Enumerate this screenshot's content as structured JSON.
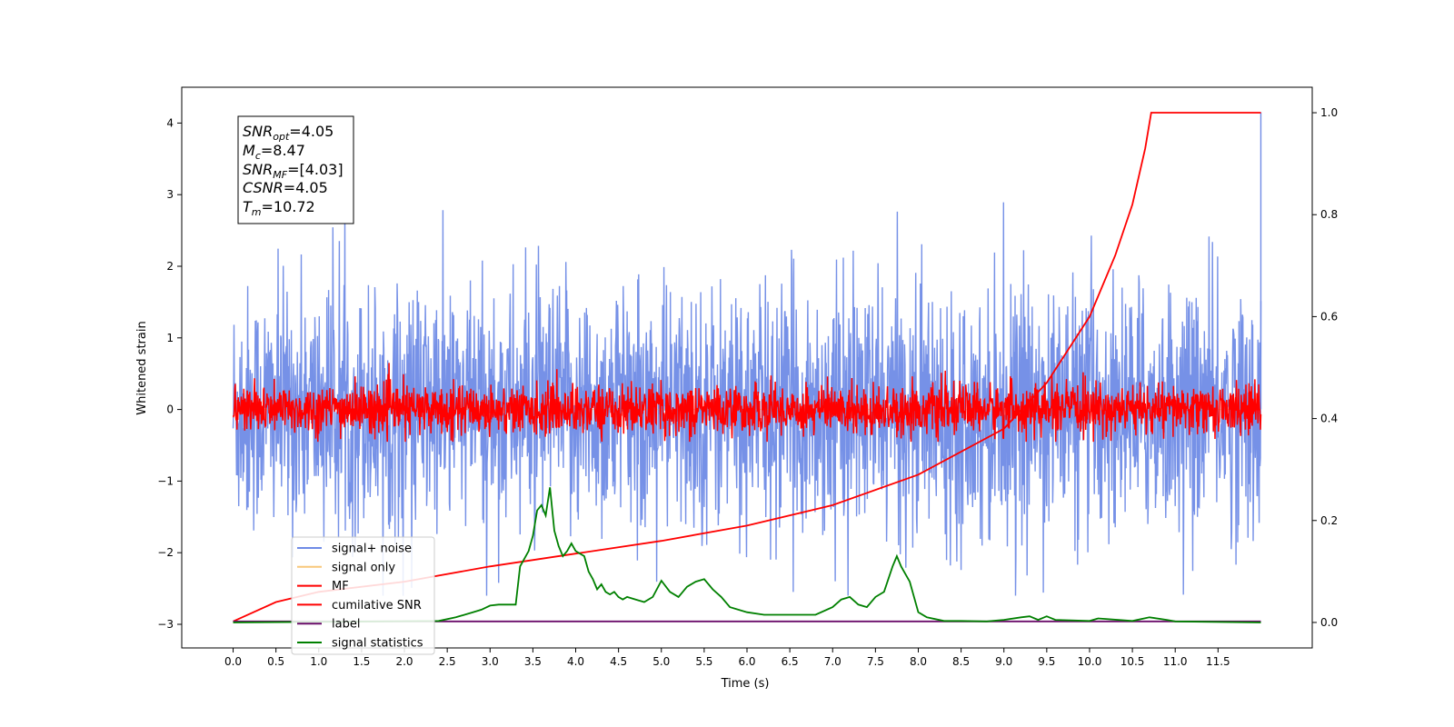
{
  "chart_data": {
    "type": "line",
    "xlabel": "Time (s)",
    "ylabel": "Whitened strain",
    "xlim": [
      -0.6,
      12.6
    ],
    "ylim_left": [
      -3.33,
      4.5
    ],
    "ylim_right": [
      -0.05,
      1.05
    ],
    "x_ticks": [
      "0.0",
      "0.5",
      "1.0",
      "1.5",
      "2.0",
      "2.5",
      "3.0",
      "3.5",
      "4.0",
      "4.5",
      "5.0",
      "5.5",
      "6.0",
      "6.5",
      "7.0",
      "7.5",
      "8.0",
      "8.5",
      "9.0",
      "9.5",
      "10.0",
      "10.5",
      "11.0",
      "11.5"
    ],
    "y_ticks_left": [
      "4",
      "3",
      "2",
      "1",
      "0",
      "−1",
      "−2",
      "−3"
    ],
    "y_ticks_right": [
      "1.0",
      "0.8",
      "0.6",
      "0.4",
      "0.2",
      "0.0"
    ],
    "colors": {
      "signal_noise": "#6f8be6",
      "signal_only": "#f5b041",
      "mf": "#ff0000",
      "cumulative_snr": "#ff0000",
      "label": "#6a0d6a",
      "signal_statistics": "#008000"
    },
    "annotation": {
      "snr_opt": "=4.05",
      "mc": "=8.47",
      "snr_mf": "=[4.03]",
      "csnr": "=4.05",
      "tm": "=10.72"
    },
    "legend": {
      "placement": "lower-left",
      "entries": [
        "signal+ noise",
        "signal only",
        "MF",
        "cumilative SNR",
        "label",
        "signal statistics"
      ]
    },
    "series": [
      {
        "name": "signal+ noise",
        "axis": "left",
        "kind": "noise",
        "mean": 0.0,
        "amplitude_range": [
          -2.6,
          2.9
        ],
        "x_range": [
          0.0,
          12.0
        ],
        "spike_x": 12.0,
        "spike_y": 4.15
      },
      {
        "name": "signal only",
        "axis": "left",
        "kind": "flat",
        "value": 0.0
      },
      {
        "name": "MF",
        "axis": "left",
        "kind": "noise",
        "mean": 0.0,
        "amplitude_range": [
          -0.45,
          0.9
        ],
        "x_range": [
          0.0,
          12.0
        ]
      },
      {
        "name": "cumilative SNR",
        "axis": "right",
        "x": [
          0.0,
          0.5,
          1.0,
          2.0,
          3.0,
          4.0,
          5.0,
          6.0,
          7.0,
          8.0,
          9.0,
          9.5,
          10.0,
          10.3,
          10.5,
          10.65,
          10.72,
          12.0
        ],
        "y": [
          0.002,
          0.04,
          0.06,
          0.08,
          0.11,
          0.135,
          0.16,
          0.19,
          0.23,
          0.29,
          0.38,
          0.47,
          0.6,
          0.72,
          0.82,
          0.93,
          1.0,
          1.0
        ]
      },
      {
        "name": "label",
        "axis": "right",
        "x": [
          0.0,
          12.0
        ],
        "y": [
          0.002,
          0.002
        ]
      },
      {
        "name": "signal statistics",
        "axis": "right",
        "x": [
          0.0,
          2.4,
          2.6,
          2.8,
          2.9,
          3.0,
          3.1,
          3.3,
          3.35,
          3.45,
          3.5,
          3.55,
          3.6,
          3.65,
          3.7,
          3.75,
          3.8,
          3.85,
          3.9,
          3.95,
          4.0,
          4.1,
          4.15,
          4.2,
          4.25,
          4.3,
          4.35,
          4.4,
          4.45,
          4.5,
          4.55,
          4.6,
          4.7,
          4.8,
          4.9,
          5.0,
          5.1,
          5.2,
          5.3,
          5.4,
          5.5,
          5.6,
          5.7,
          5.8,
          6.0,
          6.2,
          6.5,
          6.8,
          7.0,
          7.1,
          7.2,
          7.3,
          7.4,
          7.5,
          7.6,
          7.7,
          7.75,
          7.8,
          7.9,
          8.0,
          8.1,
          8.3,
          8.5,
          8.8,
          9.0,
          9.2,
          9.3,
          9.4,
          9.5,
          9.6,
          10.0,
          10.1,
          10.5,
          10.7,
          10.9,
          11.0,
          12.0
        ],
        "y": [
          0.0,
          0.003,
          0.01,
          0.02,
          0.025,
          0.033,
          0.035,
          0.035,
          0.11,
          0.14,
          0.17,
          0.22,
          0.23,
          0.21,
          0.265,
          0.18,
          0.15,
          0.13,
          0.14,
          0.155,
          0.14,
          0.13,
          0.1,
          0.085,
          0.065,
          0.075,
          0.06,
          0.055,
          0.06,
          0.05,
          0.045,
          0.05,
          0.045,
          0.04,
          0.05,
          0.082,
          0.06,
          0.05,
          0.07,
          0.08,
          0.085,
          0.065,
          0.05,
          0.03,
          0.02,
          0.015,
          0.015,
          0.015,
          0.03,
          0.045,
          0.05,
          0.035,
          0.03,
          0.05,
          0.06,
          0.11,
          0.13,
          0.11,
          0.08,
          0.02,
          0.01,
          0.003,
          0.003,
          0.002,
          0.005,
          0.01,
          0.012,
          0.005,
          0.012,
          0.005,
          0.003,
          0.008,
          0.003,
          0.01,
          0.005,
          0.002,
          0.0
        ]
      }
    ]
  }
}
